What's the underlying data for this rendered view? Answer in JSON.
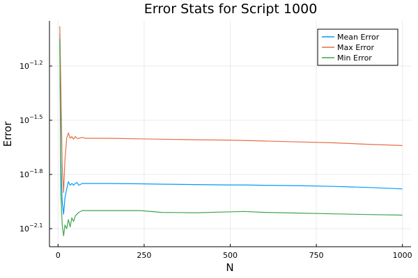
{
  "chart_data": {
    "type": "line",
    "title": "Error Stats for Script 1000",
    "xlabel": "N",
    "ylabel": "Error",
    "xlim": [
      -25,
      1025
    ],
    "ylim_log10": [
      -2.2,
      -0.95
    ],
    "yscale": "log10",
    "x_ticks": [
      0,
      250,
      500,
      750,
      1000
    ],
    "x_tick_labels": [
      "0",
      "250",
      "500",
      "750",
      "1000"
    ],
    "y_tick_exponents": [
      -2.1,
      -1.8,
      -1.5,
      -1.2
    ],
    "y_tick_labels": [
      {
        "base": "10",
        "exp": "−2.1"
      },
      {
        "base": "10",
        "exp": "−1.8"
      },
      {
        "base": "10",
        "exp": "−1.5"
      },
      {
        "base": "10",
        "exp": "−1.2"
      }
    ],
    "grid": true,
    "legend_position": "top-right",
    "x": [
      5,
      8,
      12,
      16,
      20,
      25,
      30,
      35,
      40,
      45,
      50,
      55,
      60,
      70,
      80,
      100,
      150,
      240,
      300,
      400,
      500,
      540,
      600,
      700,
      800,
      900,
      1000
    ],
    "series": [
      {
        "name": "Mean Error",
        "color": "#009AFA",
        "log10_values": [
          -1.02,
          -1.72,
          -1.95,
          -2.02,
          -1.93,
          -1.88,
          -1.84,
          -1.86,
          -1.85,
          -1.86,
          -1.85,
          -1.845,
          -1.86,
          -1.85,
          -1.85,
          -1.85,
          -1.85,
          -1.852,
          -1.854,
          -1.856,
          -1.858,
          -1.858,
          -1.86,
          -1.862,
          -1.866,
          -1.872,
          -1.88
        ]
      },
      {
        "name": "Max Error",
        "color": "#E26F46",
        "log10_values": [
          -0.98,
          -1.3,
          -1.75,
          -1.9,
          -1.72,
          -1.6,
          -1.57,
          -1.6,
          -1.59,
          -1.605,
          -1.59,
          -1.6,
          -1.6,
          -1.595,
          -1.6,
          -1.6,
          -1.6,
          -1.603,
          -1.605,
          -1.608,
          -1.61,
          -1.612,
          -1.615,
          -1.62,
          -1.625,
          -1.633,
          -1.64
        ]
      },
      {
        "name": "Min Error",
        "color": "#3DA44D",
        "log10_values": [
          -1.05,
          -1.9,
          -2.08,
          -2.14,
          -2.08,
          -2.1,
          -2.05,
          -2.09,
          -2.04,
          -2.06,
          -2.03,
          -2.02,
          -2.01,
          -2.0,
          -2.0,
          -2.0,
          -2.0,
          -2.0,
          -2.01,
          -2.012,
          -2.007,
          -2.005,
          -2.01,
          -2.014,
          -2.018,
          -2.022,
          -2.025
        ]
      }
    ]
  }
}
